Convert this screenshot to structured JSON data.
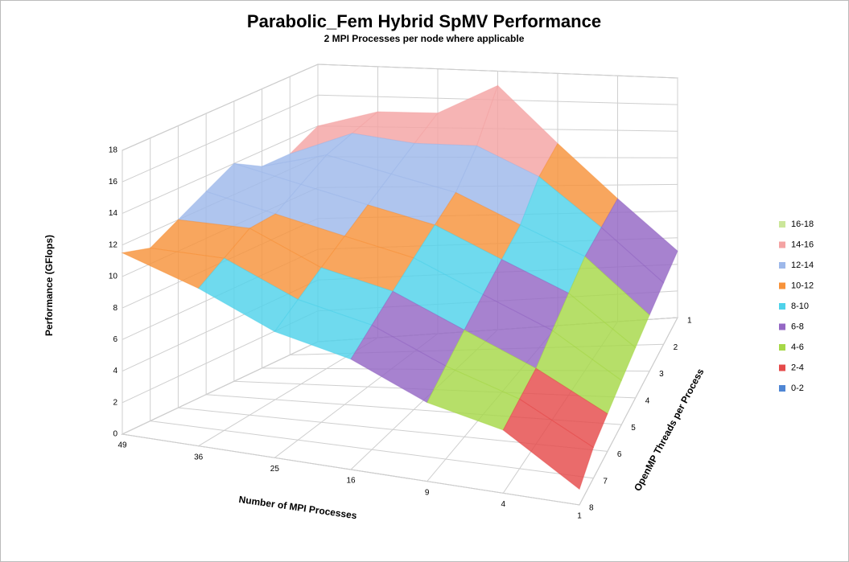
{
  "chart_data": {
    "type": "surface",
    "title": "Parabolic_Fem Hybrid SpMV Performance",
    "subtitle": "2 MPI Processes per node where applicable",
    "x_label": "Number of MPI Processes",
    "y_label": "OpenMP Threads per Process",
    "z_label": "Performance (GFlops)",
    "x_categories": [
      "49",
      "36",
      "25",
      "16",
      "9",
      "4",
      "1"
    ],
    "y_categories": [
      "1",
      "2",
      "3",
      "4",
      "5",
      "6",
      "7",
      "8"
    ],
    "values": [
      [
        14,
        15,
        15,
        17,
        13,
        9,
        5
      ],
      [
        13,
        14.5,
        14,
        14,
        12,
        8.5,
        4.5
      ],
      [
        13,
        14,
        13,
        12,
        10,
        8,
        4
      ],
      [
        14,
        13,
        12,
        11,
        9,
        7,
        3.5
      ],
      [
        13,
        12,
        11,
        10,
        8,
        6,
        3
      ],
      [
        12,
        12,
        10,
        9,
        7,
        5,
        2.5
      ],
      [
        11,
        11,
        9,
        8,
        6,
        4.5,
        2
      ],
      [
        11.5,
        10,
        8,
        7,
        5,
        4,
        1
      ]
    ],
    "zlim": [
      0,
      18
    ],
    "zticks": [
      0,
      2,
      4,
      6,
      8,
      10,
      12,
      14,
      16,
      18
    ],
    "bands": [
      {
        "label": "16-18",
        "range": [
          16,
          18
        ],
        "color": "#cbe69a"
      },
      {
        "label": "14-16",
        "range": [
          14,
          16
        ],
        "color": "#f4a3a3"
      },
      {
        "label": "12-14",
        "range": [
          12,
          14
        ],
        "color": "#9db8ea"
      },
      {
        "label": "10-12",
        "range": [
          10,
          12
        ],
        "color": "#f7923a"
      },
      {
        "label": "8-10",
        "range": [
          8,
          10
        ],
        "color": "#4fd2ea"
      },
      {
        "label": "6-8",
        "range": [
          6,
          8
        ],
        "color": "#9467c4"
      },
      {
        "label": "4-6",
        "range": [
          4,
          6
        ],
        "color": "#a6d848"
      },
      {
        "label": "2-4",
        "range": [
          2,
          4
        ],
        "color": "#e54a4a"
      },
      {
        "label": "0-2",
        "range": [
          0,
          2
        ],
        "color": "#4f86d4"
      }
    ],
    "legend": "right",
    "grid": true
  }
}
